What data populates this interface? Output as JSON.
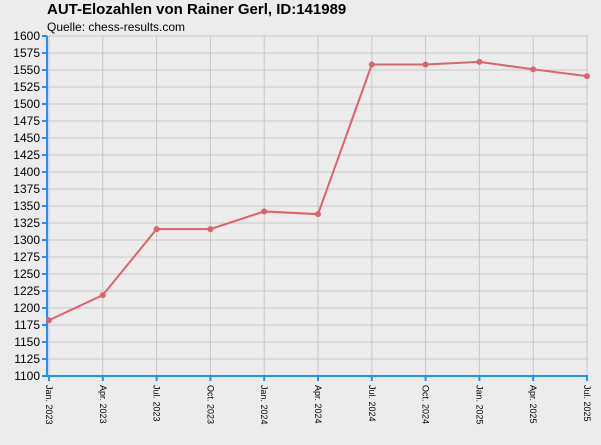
{
  "title": "AUT-Elozahlen von Rainer Gerl, ID:141989",
  "subtitle": "Quelle: chess-results.com",
  "colors": {
    "background": "#ececec",
    "grid": "#c8c8c8",
    "axis": "#1e90ff",
    "line": "#d9646b"
  },
  "chart_data": {
    "type": "line",
    "title": "AUT-Elozahlen von Rainer Gerl, ID:141989",
    "subtitle": "Quelle: chess-results.com",
    "xlabel": "",
    "ylabel": "",
    "ylim": [
      1100,
      1600
    ],
    "ytick_step": 25,
    "grid": true,
    "categories": [
      "Jan. 2023",
      "Apr. 2023",
      "Jul. 2023",
      "Oct. 2023",
      "Jan. 2024",
      "Apr. 2024",
      "Jul. 2024",
      "Oct. 2024",
      "Jan. 2025",
      "Apr. 2025",
      "Jul. 2025"
    ],
    "series": [
      {
        "values": [
          1182,
          1219,
          1316,
          1316,
          1342,
          1338,
          1558,
          1558,
          1562,
          1551,
          1541
        ]
      }
    ]
  }
}
